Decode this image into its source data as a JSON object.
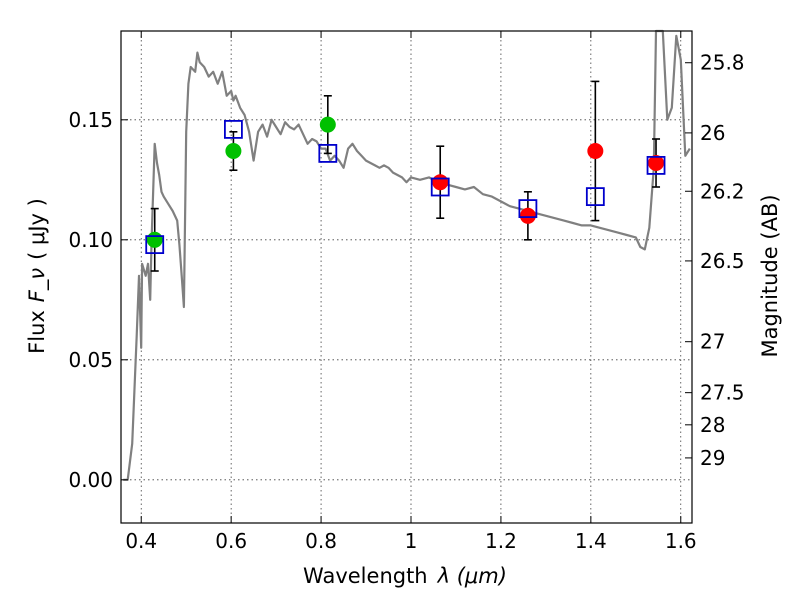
{
  "chart_data": {
    "type": "scatter",
    "xlabel": "Wavelength",
    "xlabel_math": "λ (μm)",
    "ylabel": "Flux",
    "ylabel_math": "F_ν",
    "ylabel_unit": "( μJy )",
    "ylabel_right": "Magnitude (AB)",
    "xlim": [
      0.355,
      1.625
    ],
    "ylim": [
      -0.018,
      0.187
    ],
    "x_ticks": [
      0.4,
      0.6,
      0.8,
      1.0,
      1.2,
      1.4,
      1.6
    ],
    "x_tick_labels": [
      "0.4",
      "0.6",
      "0.8",
      "1",
      "1.2",
      "1.4",
      "1.6"
    ],
    "y_ticks": [
      0.0,
      0.05,
      0.1,
      0.15
    ],
    "y_tick_labels": [
      "0.00",
      "0.05",
      "0.10",
      "0.15"
    ],
    "right_ticks_mag": [
      25.8,
      26,
      26.2,
      26.5,
      27,
      27.5,
      28,
      29
    ],
    "right_tick_labels": [
      "25.8",
      "26",
      "26.2",
      "26.5",
      "27",
      "27.5",
      "28",
      "29"
    ],
    "grid": true,
    "colors": {
      "green_points": "#00c000",
      "red_points": "#ff0000",
      "model_squares": "#0000cc",
      "template_line": "#808080",
      "errorbars": "#000000"
    },
    "template_spectrum": [
      [
        0.36,
        0.0
      ],
      [
        0.37,
        0.0
      ],
      [
        0.38,
        0.015
      ],
      [
        0.39,
        0.06
      ],
      [
        0.395,
        0.085
      ],
      [
        0.4,
        0.055
      ],
      [
        0.402,
        0.09
      ],
      [
        0.41,
        0.085
      ],
      [
        0.415,
        0.09
      ],
      [
        0.42,
        0.075
      ],
      [
        0.423,
        0.1
      ],
      [
        0.43,
        0.14
      ],
      [
        0.435,
        0.132
      ],
      [
        0.44,
        0.127
      ],
      [
        0.445,
        0.12
      ],
      [
        0.45,
        0.118
      ],
      [
        0.46,
        0.115
      ],
      [
        0.47,
        0.112
      ],
      [
        0.48,
        0.108
      ],
      [
        0.485,
        0.098
      ],
      [
        0.49,
        0.085
      ],
      [
        0.495,
        0.072
      ],
      [
        0.5,
        0.145
      ],
      [
        0.505,
        0.165
      ],
      [
        0.51,
        0.172
      ],
      [
        0.52,
        0.17
      ],
      [
        0.525,
        0.178
      ],
      [
        0.53,
        0.174
      ],
      [
        0.54,
        0.172
      ],
      [
        0.55,
        0.168
      ],
      [
        0.56,
        0.17
      ],
      [
        0.57,
        0.165
      ],
      [
        0.58,
        0.17
      ],
      [
        0.59,
        0.16
      ],
      [
        0.6,
        0.162
      ],
      [
        0.605,
        0.158
      ],
      [
        0.61,
        0.16
      ],
      [
        0.62,
        0.155
      ],
      [
        0.63,
        0.152
      ],
      [
        0.64,
        0.145
      ],
      [
        0.65,
        0.133
      ],
      [
        0.66,
        0.145
      ],
      [
        0.67,
        0.148
      ],
      [
        0.68,
        0.143
      ],
      [
        0.69,
        0.15
      ],
      [
        0.7,
        0.147
      ],
      [
        0.71,
        0.144
      ],
      [
        0.72,
        0.149
      ],
      [
        0.73,
        0.147
      ],
      [
        0.74,
        0.146
      ],
      [
        0.75,
        0.148
      ],
      [
        0.76,
        0.144
      ],
      [
        0.77,
        0.14
      ],
      [
        0.78,
        0.142
      ],
      [
        0.79,
        0.141
      ],
      [
        0.8,
        0.138
      ],
      [
        0.81,
        0.138
      ],
      [
        0.82,
        0.133
      ],
      [
        0.83,
        0.135
      ],
      [
        0.84,
        0.133
      ],
      [
        0.85,
        0.13
      ],
      [
        0.86,
        0.138
      ],
      [
        0.87,
        0.14
      ],
      [
        0.88,
        0.137
      ],
      [
        0.89,
        0.135
      ],
      [
        0.9,
        0.133
      ],
      [
        0.91,
        0.132
      ],
      [
        0.92,
        0.131
      ],
      [
        0.93,
        0.13
      ],
      [
        0.94,
        0.131
      ],
      [
        0.95,
        0.13
      ],
      [
        0.96,
        0.128
      ],
      [
        0.97,
        0.127
      ],
      [
        0.98,
        0.126
      ],
      [
        0.99,
        0.124
      ],
      [
        1.0,
        0.126
      ],
      [
        1.02,
        0.125
      ],
      [
        1.04,
        0.126
      ],
      [
        1.06,
        0.124
      ],
      [
        1.08,
        0.123
      ],
      [
        1.1,
        0.122
      ],
      [
        1.12,
        0.121
      ],
      [
        1.14,
        0.122
      ],
      [
        1.16,
        0.119
      ],
      [
        1.18,
        0.118
      ],
      [
        1.2,
        0.116
      ],
      [
        1.22,
        0.114
      ],
      [
        1.24,
        0.113
      ],
      [
        1.26,
        0.112
      ],
      [
        1.28,
        0.111
      ],
      [
        1.3,
        0.11
      ],
      [
        1.32,
        0.109
      ],
      [
        1.34,
        0.108
      ],
      [
        1.36,
        0.107
      ],
      [
        1.38,
        0.106
      ],
      [
        1.4,
        0.106
      ],
      [
        1.42,
        0.105
      ],
      [
        1.44,
        0.104
      ],
      [
        1.46,
        0.103
      ],
      [
        1.48,
        0.102
      ],
      [
        1.5,
        0.101
      ],
      [
        1.51,
        0.097
      ],
      [
        1.52,
        0.096
      ],
      [
        1.53,
        0.105
      ],
      [
        1.54,
        0.13
      ],
      [
        1.545,
        0.187
      ],
      [
        1.55,
        0.187
      ],
      [
        1.56,
        0.187
      ],
      [
        1.57,
        0.15
      ],
      [
        1.58,
        0.155
      ],
      [
        1.59,
        0.185
      ],
      [
        1.6,
        0.175
      ],
      [
        1.61,
        0.135
      ],
      [
        1.62,
        0.138
      ]
    ],
    "series": [
      {
        "marker": "green-circle",
        "x": [
          0.43,
          0.605,
          0.815
        ],
        "y": [
          0.1,
          0.137,
          0.148
        ],
        "yerr": [
          0.013,
          0.008,
          0.012
        ]
      },
      {
        "marker": "red-circle",
        "x": [
          1.065,
          1.26,
          1.41,
          1.545
        ],
        "y": [
          0.124,
          0.11,
          0.137,
          0.132
        ],
        "yerr": [
          0.015,
          0.01,
          0.029,
          0.01
        ]
      },
      {
        "marker": "blue-open-square",
        "x": [
          0.43,
          0.605,
          0.815,
          1.065,
          1.26,
          1.41,
          1.545
        ],
        "y": [
          0.098,
          0.146,
          0.136,
          0.122,
          0.113,
          0.118,
          0.131
        ]
      }
    ]
  }
}
